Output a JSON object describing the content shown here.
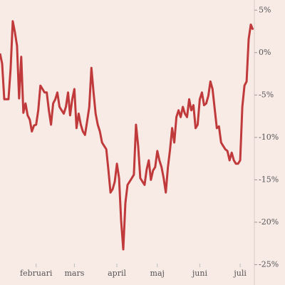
{
  "chart_data": {
    "type": "line",
    "categories": [
      null,
      null,
      null,
      null,
      null,
      null,
      null,
      null,
      null,
      null,
      null,
      null,
      null,
      null,
      null,
      null,
      null,
      "februari",
      null,
      null,
      null,
      null,
      null,
      null,
      null,
      null,
      null,
      null,
      null,
      null,
      null,
      null,
      null,
      null,
      null,
      "mars",
      null,
      null,
      null,
      null,
      null,
      null,
      null,
      null,
      null,
      null,
      null,
      null,
      null,
      null,
      null,
      null,
      null,
      null,
      null,
      "april",
      null,
      null,
      null,
      null,
      null,
      null,
      null,
      null,
      null,
      null,
      null,
      null,
      null,
      null,
      null,
      null,
      null,
      null,
      "maj",
      null,
      null,
      null,
      null,
      null,
      null,
      null,
      null,
      null,
      null,
      null,
      null,
      null,
      null,
      null,
      null,
      null,
      null,
      null,
      "juni",
      null,
      null,
      null,
      null,
      null,
      null,
      null,
      null,
      null,
      null,
      null,
      null,
      null,
      null,
      null,
      null,
      null,
      null,
      "juli",
      null,
      null,
      null,
      null,
      null,
      null
    ],
    "values": [
      -0.1,
      -1.3,
      -5.5,
      -5.5,
      -5.5,
      -1.9,
      3.7,
      2.4,
      0.8,
      -5.4,
      -0.5,
      -7.1,
      -6.0,
      -7.4,
      -7.9,
      -9.3,
      -8.6,
      -8.5,
      -6.8,
      -3.9,
      -4.3,
      -4.7,
      -4.7,
      -6.8,
      -8.5,
      -6.0,
      -5.5,
      -4.7,
      -6.4,
      -6.8,
      -7.2,
      -6.4,
      -4.7,
      -7.4,
      -5.5,
      -4.3,
      -8.9,
      -7.2,
      -8.5,
      -9.3,
      -9.7,
      -8.1,
      -6.4,
      -1.8,
      -4.7,
      -7.2,
      -8.5,
      -9.3,
      -10.6,
      -11.0,
      -11.4,
      -13.8,
      -16.5,
      -16.1,
      -15.2,
      -13.1,
      -14.8,
      -19.8,
      -23.2,
      -17.7,
      -15.6,
      -15.2,
      -14.8,
      -14.4,
      -8.5,
      -11.0,
      -14.8,
      -15.2,
      -15.6,
      -13.8,
      -12.7,
      -15.0,
      -13.9,
      -13.5,
      -11.6,
      -12.7,
      -13.5,
      -14.8,
      -16.5,
      -13.5,
      -11.4,
      -8.9,
      -10.6,
      -7.6,
      -6.8,
      -7.6,
      -6.4,
      -7.2,
      -7.6,
      -5.5,
      -6.8,
      -6.2,
      -8.9,
      -8.5,
      -5.5,
      -4.7,
      -6.2,
      -6.0,
      -5.1,
      -3.4,
      -4.3,
      -6.6,
      -8.9,
      -8.7,
      -10.6,
      -11.0,
      -11.4,
      -11.6,
      -12.7,
      -11.8,
      -12.7,
      -13.1,
      -13.1,
      -12.7,
      -6.4,
      -3.9,
      -3.4,
      1.6,
      3.3,
      2.7
    ],
    "color": "#c0393b",
    "ylim": [
      6.2,
      -27.4
    ],
    "yticks": [
      {
        "value": 5,
        "label": "5%"
      },
      {
        "value": 0,
        "label": "0%"
      },
      {
        "value": -5,
        "label": "-5%"
      },
      {
        "value": -10,
        "label": "-10%"
      },
      {
        "value": -15,
        "label": "-15%"
      },
      {
        "value": -20,
        "label": "-20%"
      },
      {
        "value": -25,
        "label": "-25%"
      }
    ]
  }
}
